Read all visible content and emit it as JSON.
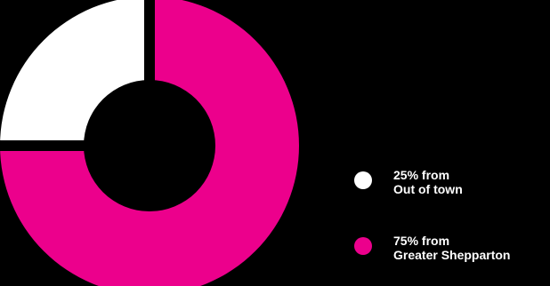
{
  "chart_data": {
    "type": "pie",
    "variant": "donut",
    "slices": [
      {
        "value": 25,
        "color": "#ffffff",
        "label_line1": "25% from",
        "label_line2": "Out of town"
      },
      {
        "value": 75,
        "color": "#ec008c",
        "label_line1": "75% from",
        "label_line2": "Greater Shepparton"
      }
    ],
    "start_angle": "12 o'clock, counter-clockwise",
    "exploded": true,
    "legend_position": "right"
  }
}
